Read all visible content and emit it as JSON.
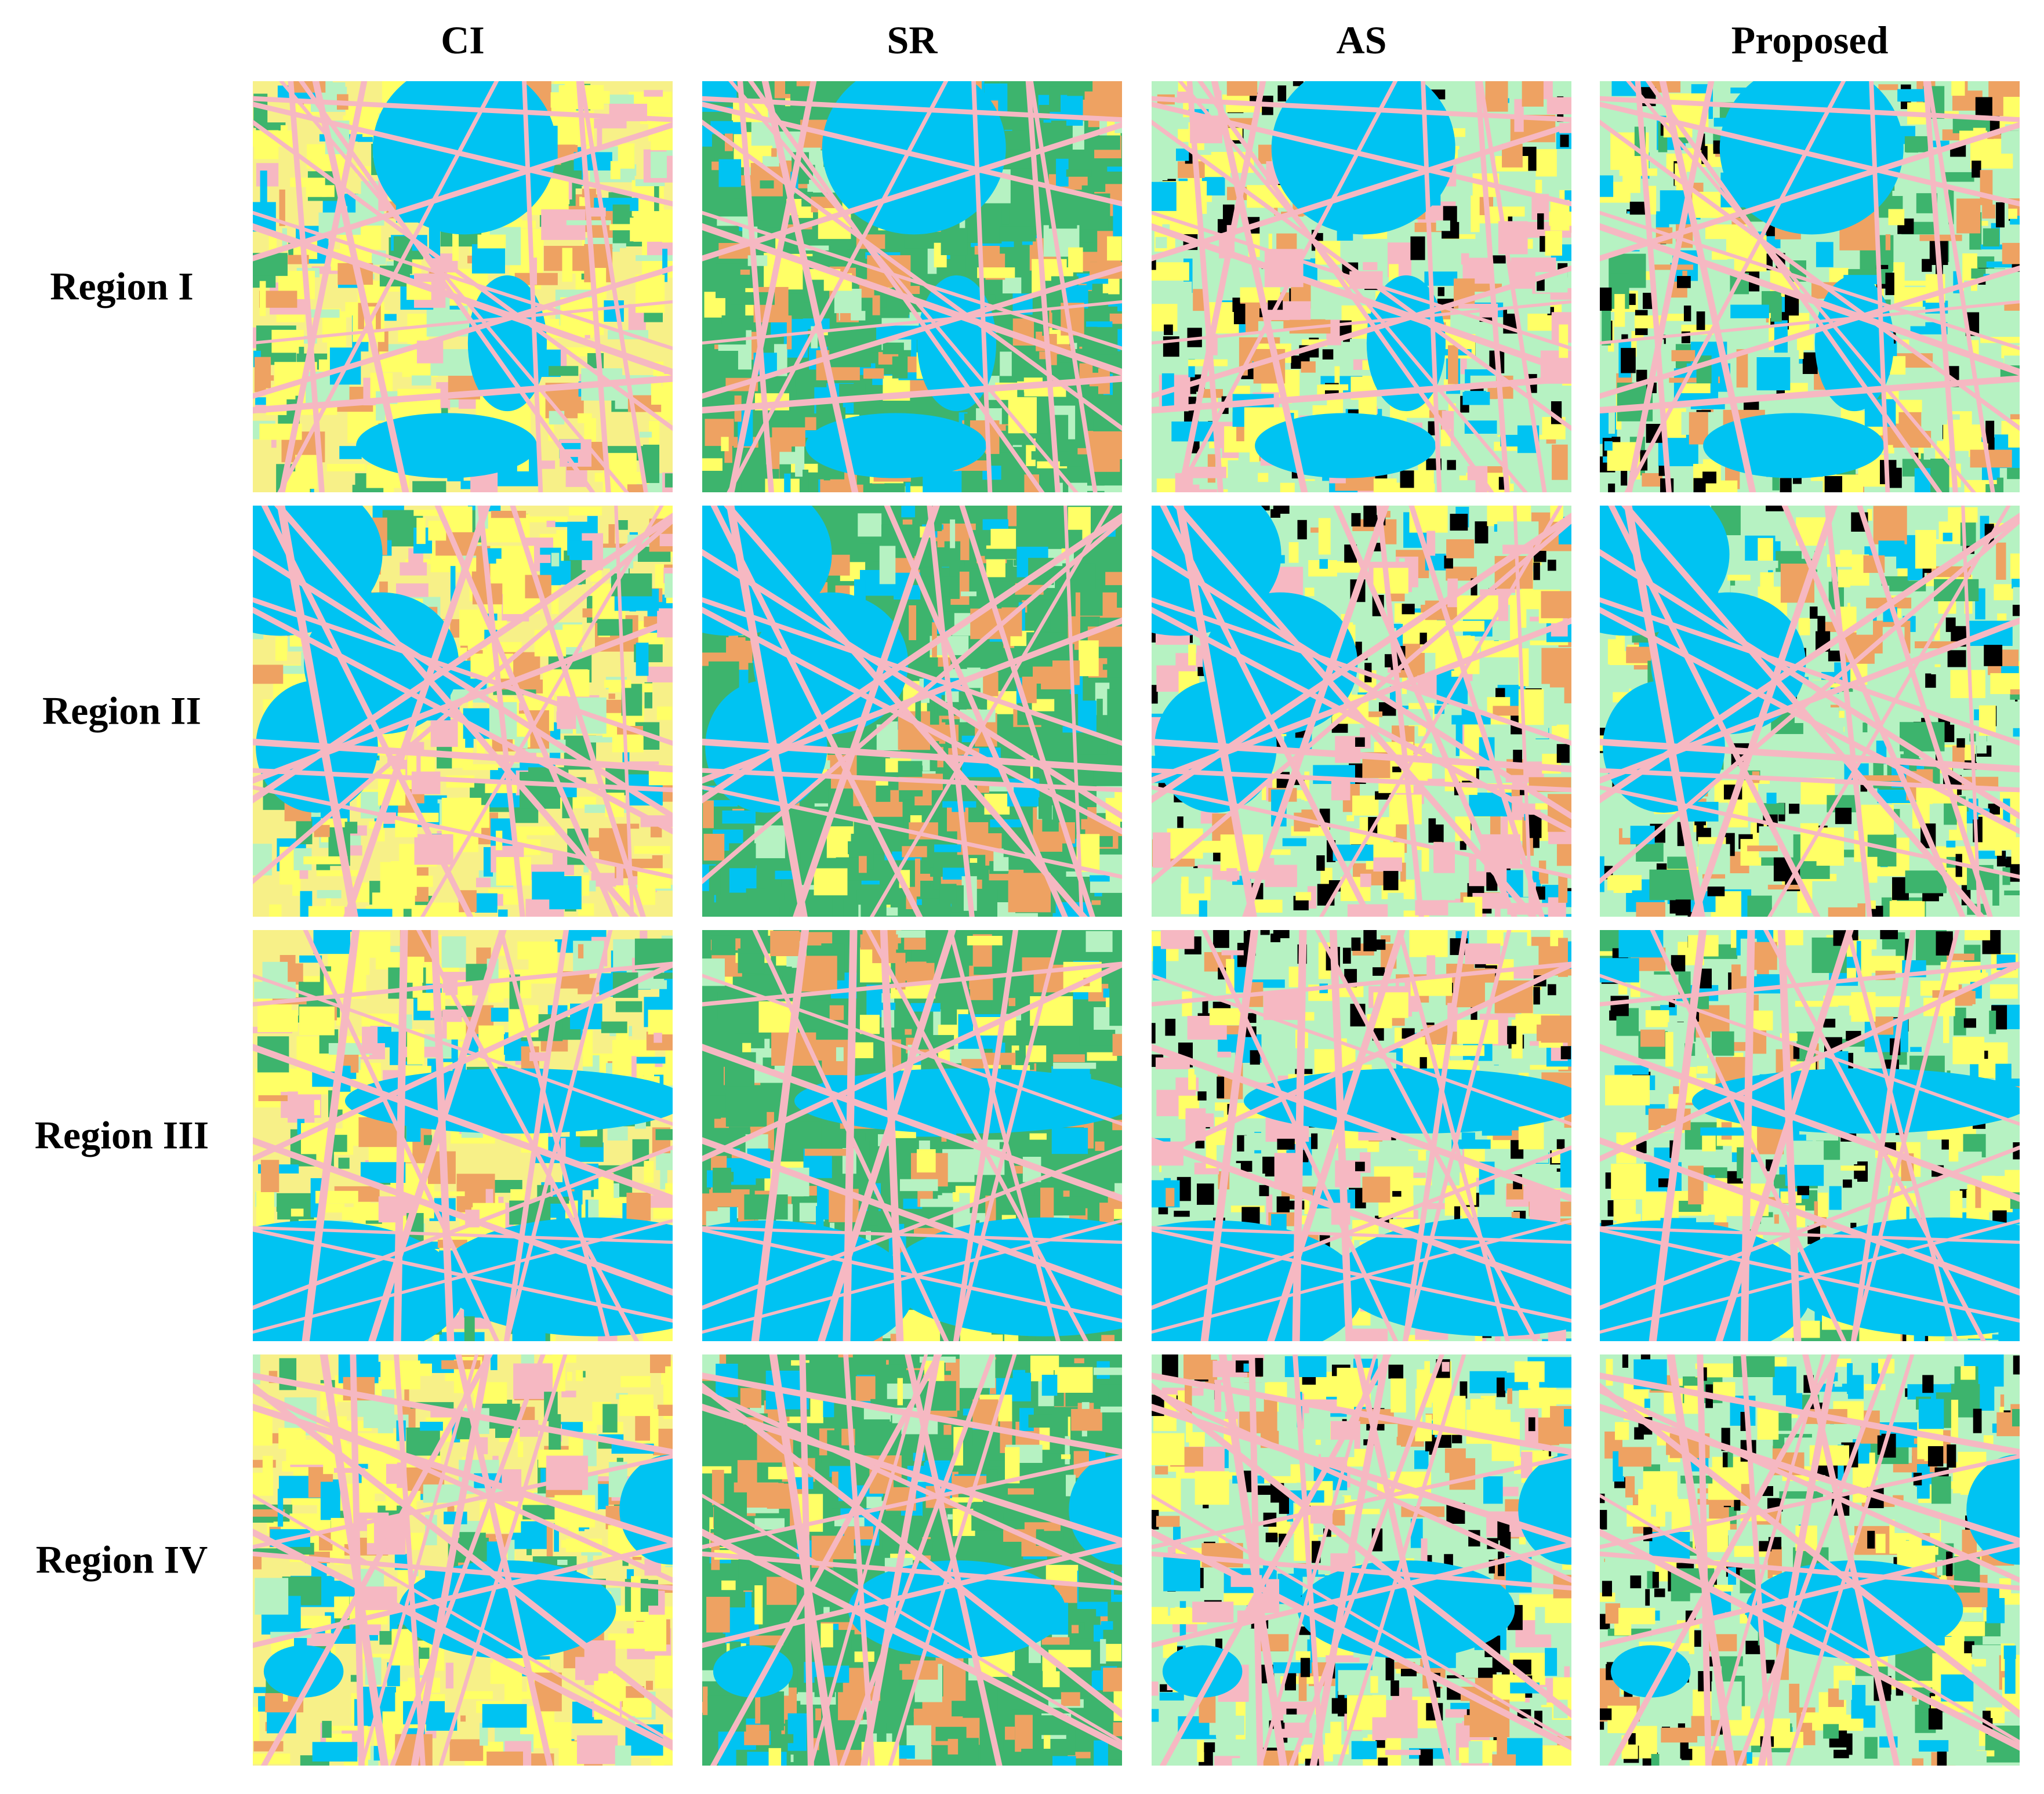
{
  "columns": [
    "CI",
    "SR",
    "AS",
    "Proposed"
  ],
  "rows": [
    "Region I",
    "Region II",
    "Region III",
    "Region IV"
  ]
}
